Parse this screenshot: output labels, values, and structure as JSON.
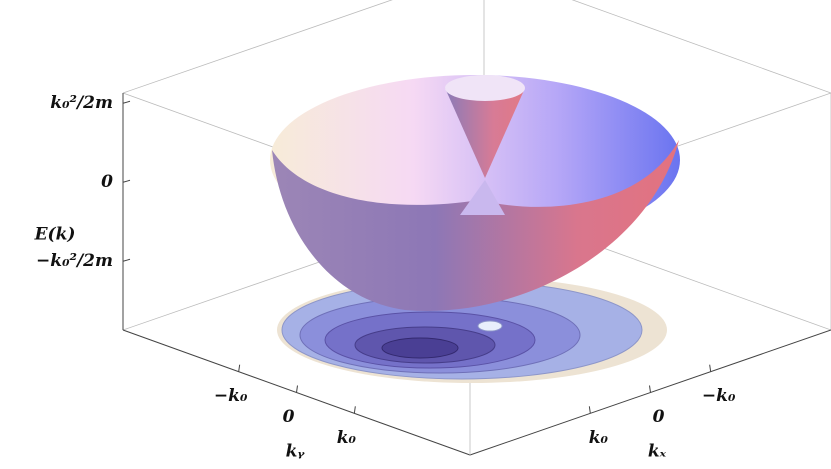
{
  "chart_data": {
    "type": "surface3d",
    "zlabel": "E(𝒌)",
    "xlabel": "𝒌ₓ",
    "ylabel": "𝒌ᵧ",
    "xlim": [
      -3,
      3
    ],
    "xticks": [
      {
        "value": -1,
        "label": "−k₀"
      },
      0,
      {
        "value": 1,
        "label": "k₀"
      }
    ],
    "ylim": [
      -3,
      3
    ],
    "yticks": [
      {
        "value": -1,
        "label": "−k₀"
      },
      0,
      {
        "value": 1,
        "label": "k₀"
      }
    ],
    "zlim": [
      -1.87,
      1.13
    ],
    "zticks": [
      {
        "value": -1,
        "label": "−k₀²/2m"
      },
      0,
      {
        "value": 1,
        "label": "k₀²/2m"
      }
    ]
  }
}
